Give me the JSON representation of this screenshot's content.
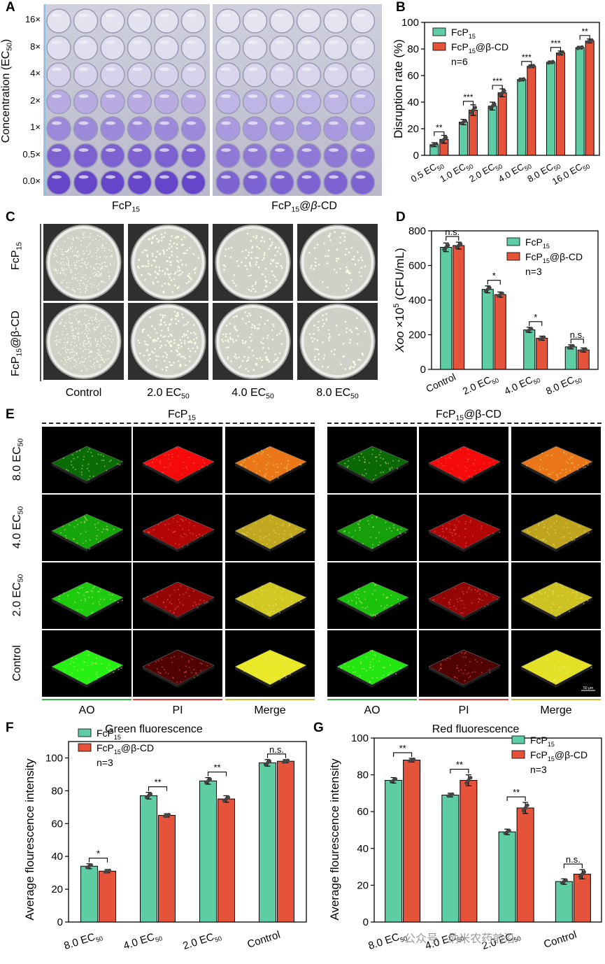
{
  "panel_labels": {
    "A": "A",
    "B": "B",
    "C": "C",
    "D": "D",
    "E": "E",
    "F": "F",
    "G": "G"
  },
  "colors": {
    "fcp15": "#5fcda3",
    "fcp15_cd": "#e4533a",
    "green_line": "#3cb043",
    "red_line": "#e33b3b",
    "yellow_line": "#c8b838"
  },
  "panel_a": {
    "ylabel_main": "Concentration (EC",
    "ylabel_sub": "50",
    "ylabel_end": ")",
    "row_labels": [
      "16×",
      "8×",
      "4×",
      "2×",
      "1×",
      "0.5×",
      "0.0×"
    ],
    "row_intensity": [
      0.02,
      0.05,
      0.12,
      0.35,
      0.55,
      0.78,
      0.95
    ],
    "caption_left_main": "FcP",
    "caption_left_sub": "15",
    "caption_right_main": "FcP",
    "caption_right_sub": "15",
    "caption_right_mid": "@",
    "caption_right_beta": "β",
    "caption_right_end": "-CD"
  },
  "chart_data": [
    {
      "id": "B",
      "type": "bar",
      "ylabel": "Disruption rate (%)",
      "ylim": [
        0,
        100
      ],
      "yticks": [
        0,
        20,
        40,
        60,
        80,
        100
      ],
      "categories": [
        "0.5 EC50",
        "1.0 EC50",
        "2.0 EC50",
        "4.0 EC50",
        "8.0 EC50",
        "16.0 EC50"
      ],
      "cat_main": [
        "0.5 EC",
        "1.0 EC",
        "2.0 EC",
        "4.0 EC",
        "8.0 EC",
        "16.0 EC"
      ],
      "cat_sub": "50",
      "series": [
        {
          "name": "FcP15",
          "values": [
            8,
            25,
            37,
            57,
            70,
            81
          ],
          "errors": [
            1.5,
            2,
            3,
            1,
            1,
            1
          ]
        },
        {
          "name": "FcP15@β-CD",
          "values": [
            12,
            34,
            47,
            67,
            77,
            86
          ],
          "errors": [
            3,
            4,
            3,
            1,
            1.5,
            1.5
          ]
        }
      ],
      "significance": [
        "**",
        "***",
        "***",
        "***",
        "***",
        "**"
      ],
      "legend": {
        "s1_main": "FcP",
        "s1_sub": "15",
        "s2_main": "FcP",
        "s2_sub": "15",
        "s2_end": "@β-CD",
        "note": "n=6"
      }
    },
    {
      "id": "D",
      "type": "bar",
      "ylabel_ital": "Xoo",
      "ylabel_mid": " ×10",
      "ylabel_sup": "5",
      "ylabel_end": " (CFU/mL)",
      "ylim": [
        0,
        800
      ],
      "yticks": [
        0,
        200,
        400,
        600,
        800
      ],
      "categories": [
        "Control",
        "2.0 EC50",
        "4.0 EC50",
        "8.0 EC50"
      ],
      "cat_main": [
        "Control",
        "2.0 EC",
        "4.0 EC",
        "8.0 EC"
      ],
      "cat_sub": [
        "",
        "50",
        "50",
        "50"
      ],
      "series": [
        {
          "name": "FcP15",
          "values": [
            705,
            462,
            228,
            130
          ],
          "errors": [
            25,
            20,
            15,
            12
          ]
        },
        {
          "name": "FcP15@β-CD",
          "values": [
            715,
            432,
            180,
            112
          ],
          "errors": [
            20,
            15,
            12,
            12
          ]
        }
      ],
      "significance": [
        "n.s.",
        "*",
        "*",
        "n.s."
      ],
      "legend": {
        "s1_main": "FcP",
        "s1_sub": "15",
        "s2_main": "FcP",
        "s2_sub": "15",
        "s2_end": "@β-CD",
        "note": "n=3"
      }
    },
    {
      "id": "F",
      "type": "bar",
      "title": "Green fluorescence",
      "ylabel": "Average flourescence intensity",
      "ylim": [
        0,
        110
      ],
      "yticks": [
        0,
        20,
        40,
        60,
        80,
        100
      ],
      "categories": [
        "8.0 EC50",
        "4.0 EC50",
        "2.0 EC50",
        "Control"
      ],
      "cat_main": [
        "8.0 EC",
        "4.0 EC",
        "2.0 EC",
        "Control"
      ],
      "cat_sub": [
        "50",
        "50",
        "50",
        ""
      ],
      "series": [
        {
          "name": "FcP15",
          "values": [
            34,
            77,
            86,
            97
          ],
          "errors": [
            1.5,
            2,
            2,
            2
          ]
        },
        {
          "name": "FcP15@β-CD",
          "values": [
            31,
            65,
            75,
            98
          ],
          "errors": [
            1,
            1,
            2,
            1
          ]
        }
      ],
      "significance": [
        "*",
        "**",
        "**",
        "n.s."
      ],
      "legend": {
        "s1_main": "FcP",
        "s1_sub": "15",
        "s2_main": "FcP",
        "s2_sub": "15",
        "s2_end": "@β-CD",
        "note": "n=3"
      }
    },
    {
      "id": "G",
      "type": "bar",
      "title": "Red fluorescence",
      "ylabel": "Average flourescence intensity",
      "ylim": [
        0,
        100
      ],
      "yticks": [
        0,
        20,
        40,
        60,
        80,
        100
      ],
      "categories": [
        "8.0 EC50",
        "4.0 EC50",
        "2.0 EC50",
        "Control"
      ],
      "cat_main": [
        "8.0 EC",
        "4.0 EC",
        "2.0 EC",
        "Control"
      ],
      "cat_sub": [
        "50",
        "50",
        "50",
        ""
      ],
      "series": [
        {
          "name": "FcP15",
          "values": [
            77,
            69,
            49,
            22
          ],
          "errors": [
            1.5,
            1,
            1.5,
            1.5
          ]
        },
        {
          "name": "FcP15@β-CD",
          "values": [
            88,
            77,
            62,
            26
          ],
          "errors": [
            1,
            3,
            3,
            2.5
          ]
        }
      ],
      "significance": [
        "**",
        "**",
        "**",
        "n.s."
      ],
      "legend": {
        "s1_main": "FcP",
        "s1_sub": "15",
        "s2_main": "FcP",
        "s2_sub": "15",
        "s2_end": "@β-CD",
        "note": "n=3"
      }
    }
  ],
  "panel_c": {
    "row1_main": "FcP",
    "row1_sub": "15",
    "row2_main": "FcP",
    "row2_sub": "15",
    "row2_end": "@β-CD",
    "col_labels": [
      {
        "main": "Control",
        "sub": ""
      },
      {
        "main": "2.0 EC",
        "sub": "50"
      },
      {
        "main": "4.0 EC",
        "sub": "50"
      },
      {
        "main": "8.0 EC",
        "sub": "50"
      }
    ],
    "colony_density": [
      300,
      160,
      110,
      75
    ]
  },
  "panel_e": {
    "left_title_main": "FcP",
    "left_title_sub": "15",
    "right_title_main": "FcP",
    "right_title_sub": "15",
    "right_title_end": "@β-CD",
    "row_labels": [
      {
        "main": "8.0 EC",
        "sub": "50"
      },
      {
        "main": "4.0 EC",
        "sub": "50"
      },
      {
        "main": "2.0 EC",
        "sub": "50"
      },
      {
        "main": "Control",
        "sub": ""
      }
    ],
    "channel_labels": [
      "AO",
      "PI",
      "Merge"
    ],
    "green_level": [
      0.25,
      0.55,
      0.75,
      0.95
    ],
    "red_level": [
      0.95,
      0.6,
      0.45,
      0.1
    ],
    "scale_bar": "50 μm"
  },
  "watermark": "公众号 · 纳米农药前沿"
}
